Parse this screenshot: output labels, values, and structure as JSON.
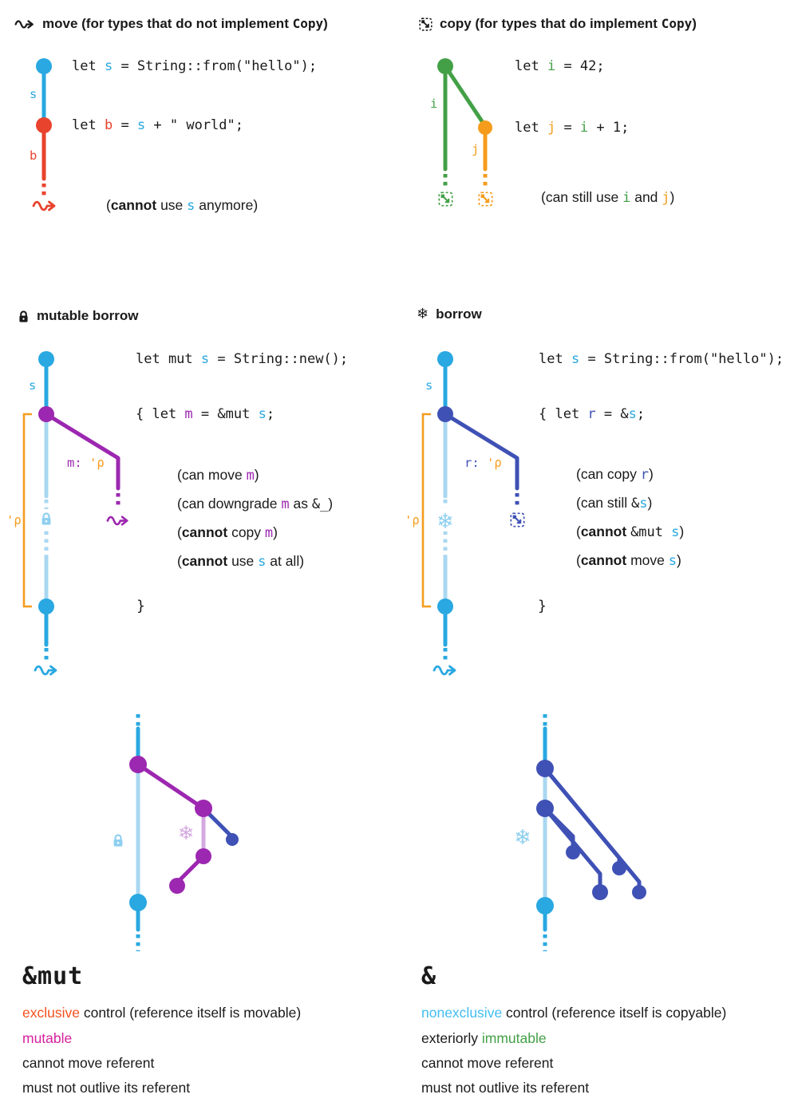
{
  "colors": {
    "ink": "#1a1a1a",
    "blue": "#29a8e1",
    "paleblue": "#a9d7f1",
    "iceblue": "#8ecff0",
    "red": "#e8432d",
    "green": "#43a047",
    "orange": "#f59c1d",
    "purple": "#9c27b0",
    "palepurple": "#d4a9e0",
    "indigo": "#3f51b5",
    "magenta": "#d6219c",
    "orangered": "#f4511e",
    "lightblue": "#41bdf0"
  },
  "icons": {
    "snowflake_char": "❄"
  },
  "move": {
    "title": [
      {
        "t": "move (for types that do not implement "
      },
      {
        "t": "Copy",
        "c": "mono"
      },
      {
        "t": ")"
      }
    ],
    "code1": [
      {
        "t": "let "
      },
      {
        "t": "s",
        "c": "blue"
      },
      {
        "t": " = String::from(\"hello\");"
      }
    ],
    "code2": [
      {
        "t": "let "
      },
      {
        "t": "b",
        "c": "red"
      },
      {
        "t": " = "
      },
      {
        "t": "s",
        "c": "blue"
      },
      {
        "t": " + \" world\";"
      }
    ],
    "label_s": "s",
    "label_b": "b",
    "note": [
      {
        "t": "("
      },
      {
        "t": "cannot",
        "c": "bold"
      },
      {
        "t": " use "
      },
      {
        "t": "s",
        "c": "mono blue"
      },
      {
        "t": " anymore)"
      }
    ]
  },
  "copy": {
    "title": [
      {
        "t": "copy (for types that do implement "
      },
      {
        "t": "Copy",
        "c": "mono"
      },
      {
        "t": ")"
      }
    ],
    "code1": [
      {
        "t": "let "
      },
      {
        "t": "i",
        "c": "green"
      },
      {
        "t": " = 42;"
      }
    ],
    "code2": [
      {
        "t": "let "
      },
      {
        "t": "j",
        "c": "orange"
      },
      {
        "t": " = "
      },
      {
        "t": "i",
        "c": "green"
      },
      {
        "t": " + 1;"
      }
    ],
    "label_i": "i",
    "label_j": "j",
    "note": [
      {
        "t": "(can still use "
      },
      {
        "t": "i",
        "c": "mono green"
      },
      {
        "t": " and "
      },
      {
        "t": "j",
        "c": "mono orange"
      },
      {
        "t": ")"
      }
    ]
  },
  "mut_borrow": {
    "title": [
      {
        "t": "mutable borrow"
      }
    ],
    "code1": [
      {
        "t": "let mut "
      },
      {
        "t": "s",
        "c": "blue"
      },
      {
        "t": " = String::new();"
      }
    ],
    "code2": [
      {
        "t": "{ let "
      },
      {
        "t": "m",
        "c": "purple"
      },
      {
        "t": " = &mut "
      },
      {
        "t": "s",
        "c": "blue"
      },
      {
        "t": ";"
      }
    ],
    "label_s": "s",
    "m_label": [
      {
        "t": "m: ",
        "c": "purple"
      },
      {
        "t": "'ρ",
        "c": "orange"
      }
    ],
    "lifetime": "'ρ",
    "ann1": [
      {
        "t": "(can move "
      },
      {
        "t": "m",
        "c": "mono purple"
      },
      {
        "t": ")"
      }
    ],
    "ann2": [
      {
        "t": "(can downgrade "
      },
      {
        "t": "m",
        "c": "mono purple"
      },
      {
        "t": " as "
      },
      {
        "t": "&_",
        "c": "mono"
      },
      {
        "t": ")"
      }
    ],
    "ann3": [
      {
        "t": "("
      },
      {
        "t": "cannot",
        "c": "bold"
      },
      {
        "t": " copy "
      },
      {
        "t": "m",
        "c": "mono purple"
      },
      {
        "t": ")"
      }
    ],
    "ann4": [
      {
        "t": "("
      },
      {
        "t": "cannot",
        "c": "bold"
      },
      {
        "t": " use "
      },
      {
        "t": "s",
        "c": "mono blue"
      },
      {
        "t": " at all)"
      }
    ],
    "brace": "}"
  },
  "borrow": {
    "title": [
      {
        "t": "borrow"
      }
    ],
    "code1": [
      {
        "t": "let "
      },
      {
        "t": "s",
        "c": "blue"
      },
      {
        "t": " = String::from(\"hello\");"
      }
    ],
    "code2": [
      {
        "t": "{ let "
      },
      {
        "t": "r",
        "c": "indigo"
      },
      {
        "t": " = &"
      },
      {
        "t": "s",
        "c": "blue"
      },
      {
        "t": ";"
      }
    ],
    "label_s": "s",
    "r_label": [
      {
        "t": "r: ",
        "c": "indigo"
      },
      {
        "t": "'ρ",
        "c": "orange"
      }
    ],
    "lifetime": "'ρ",
    "ann1": [
      {
        "t": "(can copy "
      },
      {
        "t": "r",
        "c": "mono indigo"
      },
      {
        "t": ")"
      }
    ],
    "ann2": [
      {
        "t": "(can still "
      },
      {
        "t": "&",
        "c": "mono"
      },
      {
        "t": "s",
        "c": "mono blue"
      },
      {
        "t": ")"
      }
    ],
    "ann3": [
      {
        "t": "("
      },
      {
        "t": "cannot",
        "c": "bold"
      },
      {
        "t": " "
      },
      {
        "t": "&mut ",
        "c": "mono"
      },
      {
        "t": "s",
        "c": "mono blue"
      },
      {
        "t": ")"
      }
    ],
    "ann4": [
      {
        "t": "("
      },
      {
        "t": "cannot",
        "c": "bold"
      },
      {
        "t": " move "
      },
      {
        "t": "s",
        "c": "mono blue"
      },
      {
        "t": ")"
      }
    ],
    "brace": "}"
  },
  "legend_mut": {
    "header": "&mut",
    "lines": [
      [
        {
          "t": "exclusive",
          "c": "orangered"
        },
        {
          "t": " control (reference itself is movable)"
        }
      ],
      [
        {
          "t": "mutable",
          "c": "magenta"
        }
      ],
      [
        {
          "t": "cannot move referent"
        }
      ],
      [
        {
          "t": "must not outlive its referent"
        }
      ]
    ]
  },
  "legend_ref": {
    "header": "&",
    "lines": [
      [
        {
          "t": "nonexclusive",
          "c": "lightblue"
        },
        {
          "t": " control (reference itself is copyable)"
        }
      ],
      [
        {
          "t": "exteriorly "
        },
        {
          "t": "immutable",
          "c": "green"
        }
      ],
      [
        {
          "t": "cannot move referent"
        }
      ],
      [
        {
          "t": "must not outlive its referent"
        }
      ]
    ]
  }
}
